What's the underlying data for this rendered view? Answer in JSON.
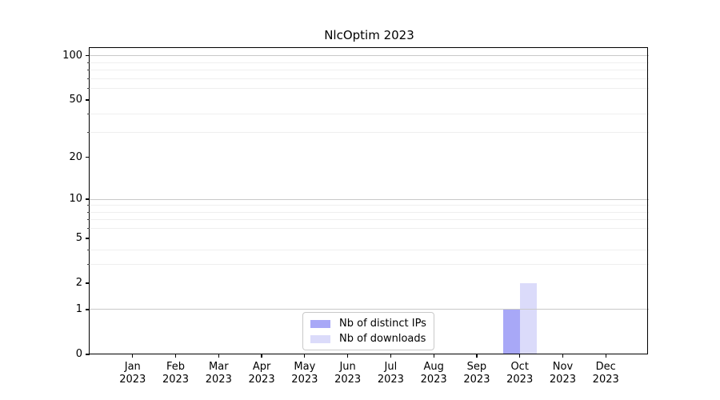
{
  "chart_data": {
    "type": "bar",
    "title": "NlcOptim 2023",
    "categories": [
      "Jan",
      "Feb",
      "Mar",
      "Apr",
      "May",
      "Jun",
      "Jul",
      "Aug",
      "Sep",
      "Oct",
      "Nov",
      "Dec"
    ],
    "x_year": "2023",
    "series": [
      {
        "name": "Nb of distinct IPs",
        "color": "#a8a8f7",
        "values": [
          0,
          0,
          0,
          0,
          0,
          0,
          0,
          0,
          0,
          1,
          0,
          0
        ]
      },
      {
        "name": "Nb of downloads",
        "color": "#dbdbfa",
        "values": [
          0,
          0,
          0,
          0,
          0,
          0,
          0,
          0,
          0,
          2,
          0,
          0
        ]
      }
    ],
    "y_scale": "log1p",
    "y_ticks": [
      0,
      1,
      2,
      5,
      10,
      20,
      50,
      100
    ],
    "y_major_gridlines": [
      1,
      10,
      100
    ],
    "y_minor_gridlines": [
      3,
      4,
      6,
      7,
      8,
      9,
      30,
      40,
      60,
      70,
      80,
      90
    ],
    "ylim": [
      0,
      113
    ],
    "grid": true,
    "legend_position": "lower center",
    "colors": {
      "axis": "#000000",
      "background": "#ffffff",
      "major_grid": "#c9c9c9",
      "minor_grid": "#efefef",
      "legend_border": "#c9c9c9"
    }
  }
}
